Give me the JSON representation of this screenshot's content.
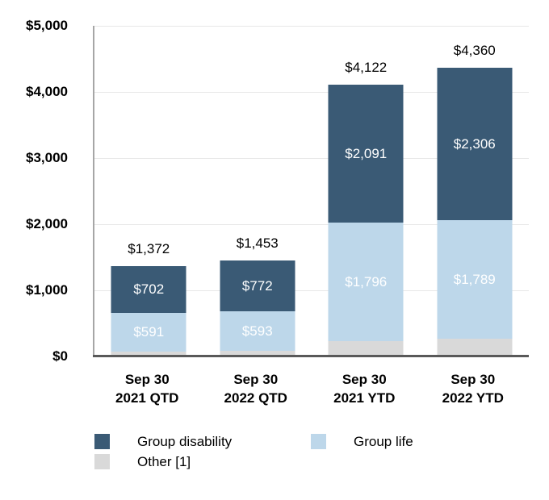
{
  "chart_data": {
    "type": "bar",
    "stacked": true,
    "grid": "horizontal",
    "legend_position": "bottom",
    "categories": [
      {
        "line1": "Sep 30",
        "line2": "2021 QTD"
      },
      {
        "line1": "Sep 30",
        "line2": "2022 QTD"
      },
      {
        "line1": "Sep 30",
        "line2": "2021 YTD"
      },
      {
        "line1": "Sep 30",
        "line2": "2022 YTD"
      }
    ],
    "series": [
      {
        "name": "Group disability",
        "color": "#3a5a75",
        "values": [
          702,
          772,
          2091,
          2306
        ],
        "data_labels": [
          "$702",
          "$772",
          "$2,091",
          "$2,306"
        ]
      },
      {
        "name": "Group life",
        "color": "#bdd7ea",
        "values": [
          591,
          593,
          1796,
          1789
        ],
        "data_labels": [
          "$591",
          "$593",
          "$1,796",
          "$1,789"
        ]
      },
      {
        "name": "Other [1]",
        "color": "#d9d9d9",
        "values": [
          79,
          88,
          235,
          265
        ],
        "data_labels": [
          "",
          "",
          "",
          ""
        ]
      }
    ],
    "stack_order_bottom_to_top": [
      "Other [1]",
      "Group life",
      "Group disability"
    ],
    "totals": [
      1372,
      1453,
      4122,
      4360
    ],
    "total_labels": [
      "$1,372",
      "$1,453",
      "$4,122",
      "$4,360"
    ],
    "y_axis": {
      "min": 0,
      "max": 5000,
      "tick_interval": 1000,
      "ticks": [
        "$5,000",
        "$4,000",
        "$3,000",
        "$2,000",
        "$1,000",
        "$0"
      ]
    },
    "legend": [
      "Group disability",
      "Group life",
      "Other [1]"
    ]
  },
  "colors": {
    "gridline": "#e8e8e8",
    "axis_left": "#a6a6a6",
    "axis_bottom": "#595959",
    "total_label": "#000000",
    "segment_label": "#ffffff"
  }
}
